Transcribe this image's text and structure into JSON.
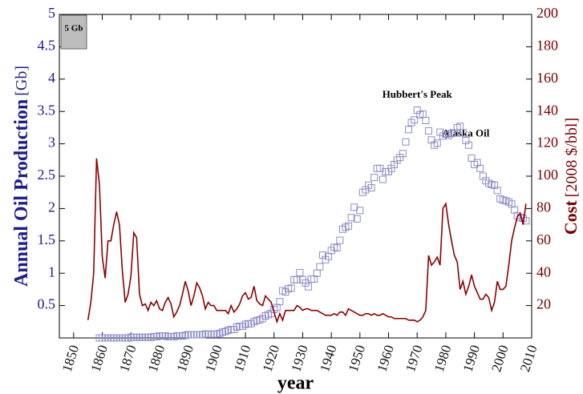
{
  "chart_data": {
    "type": "line",
    "x_label": "year",
    "y_label": "Annual Oil Production",
    "y_label_unit": "[Gb]",
    "y2_label": "Cost",
    "y2_label_unit": "[2008 $/bbl]",
    "box_label": "5 Gb",
    "annotations": [
      {
        "text": "Hubbert's Peak",
        "x": 1970,
        "y": 3.75
      },
      {
        "text": "Alaska Oil",
        "x": 1987,
        "y": 3.15
      }
    ],
    "xlim": [
      1845,
      2010
    ],
    "xticks": [
      1850,
      1860,
      1870,
      1880,
      1890,
      1900,
      1910,
      1920,
      1930,
      1940,
      1950,
      1960,
      1970,
      1980,
      1990,
      2000,
      2010
    ],
    "ylim": [
      0,
      5
    ],
    "yticks": [
      0.5,
      1,
      1.5,
      2,
      2.5,
      3,
      3.5,
      4,
      4.5,
      5
    ],
    "y2lim": [
      0,
      200
    ],
    "y2ticks": [
      20,
      40,
      60,
      80,
      100,
      120,
      140,
      160,
      180,
      200
    ],
    "series": [
      {
        "name": "Annual Oil Production",
        "kind": "scatter",
        "color": "#8c8cc8",
        "x": [
          1859,
          1860,
          1861,
          1862,
          1863,
          1864,
          1865,
          1866,
          1867,
          1868,
          1869,
          1870,
          1871,
          1872,
          1873,
          1874,
          1875,
          1876,
          1877,
          1878,
          1879,
          1880,
          1881,
          1882,
          1883,
          1884,
          1885,
          1886,
          1887,
          1888,
          1889,
          1890,
          1891,
          1892,
          1893,
          1894,
          1895,
          1896,
          1897,
          1898,
          1899,
          1900,
          1901,
          1902,
          1903,
          1904,
          1905,
          1906,
          1907,
          1908,
          1909,
          1910,
          1911,
          1912,
          1913,
          1914,
          1915,
          1916,
          1917,
          1918,
          1919,
          1920,
          1921,
          1922,
          1923,
          1924,
          1925,
          1926,
          1927,
          1928,
          1929,
          1930,
          1931,
          1932,
          1933,
          1934,
          1935,
          1936,
          1937,
          1938,
          1939,
          1940,
          1941,
          1942,
          1943,
          1944,
          1945,
          1946,
          1947,
          1948,
          1949,
          1950,
          1951,
          1952,
          1953,
          1954,
          1955,
          1956,
          1957,
          1958,
          1959,
          1960,
          1961,
          1962,
          1963,
          1964,
          1965,
          1966,
          1967,
          1968,
          1969,
          1970,
          1971,
          1972,
          1973,
          1974,
          1975,
          1976,
          1977,
          1978,
          1979,
          1980,
          1981,
          1982,
          1983,
          1984,
          1985,
          1986,
          1987,
          1988,
          1989,
          1990,
          1991,
          1992,
          1993,
          1994,
          1995,
          1996,
          1997,
          1998,
          1999,
          2000,
          2001,
          2002,
          2003,
          2004,
          2005,
          2006,
          2007,
          2008
        ],
        "values": [
          0,
          0,
          0,
          0,
          0,
          0,
          0,
          0,
          0,
          0,
          0,
          0.01,
          0.01,
          0.01,
          0.01,
          0.01,
          0.01,
          0.01,
          0.01,
          0.02,
          0.02,
          0.03,
          0.03,
          0.03,
          0.02,
          0.02,
          0.02,
          0.03,
          0.03,
          0.03,
          0.04,
          0.05,
          0.05,
          0.05,
          0.05,
          0.05,
          0.05,
          0.06,
          0.06,
          0.06,
          0.06,
          0.06,
          0.07,
          0.09,
          0.1,
          0.12,
          0.13,
          0.13,
          0.17,
          0.18,
          0.18,
          0.21,
          0.22,
          0.22,
          0.25,
          0.27,
          0.28,
          0.3,
          0.34,
          0.36,
          0.38,
          0.44,
          0.47,
          0.56,
          0.73,
          0.71,
          0.76,
          0.77,
          0.9,
          0.9,
          1.01,
          0.9,
          0.85,
          0.79,
          0.91,
          0.91,
          1,
          1.1,
          1.28,
          1.21,
          1.26,
          1.35,
          1.4,
          1.39,
          1.51,
          1.68,
          1.71,
          1.73,
          1.86,
          2.02,
          1.84,
          1.97,
          2.25,
          2.29,
          2.36,
          2.32,
          2.48,
          2.62,
          2.62,
          2.45,
          2.57,
          2.57,
          2.62,
          2.68,
          2.75,
          2.79,
          2.85,
          3.03,
          3.22,
          3.33,
          3.37,
          3.52,
          3.45,
          3.46,
          3.36,
          3.2,
          3.06,
          2.98,
          3.01,
          3.18,
          3.12,
          3.15,
          3.13,
          3.16,
          3.17,
          3.25,
          3.27,
          3.17,
          3.05,
          2.98,
          2.78,
          2.68,
          2.71,
          2.62,
          2.5,
          2.43,
          2.39,
          2.37,
          2.36,
          2.28,
          2.15,
          2.13,
          2.12,
          2.1,
          2.07,
          1.98,
          1.89,
          1.86,
          1.85,
          1.81
        ]
      },
      {
        "name": "Cost",
        "kind": "line",
        "axis": "y2",
        "color": "#8b0000",
        "x": [
          1855,
          1856,
          1857,
          1858,
          1859,
          1860,
          1861,
          1862,
          1863,
          1864,
          1865,
          1866,
          1867,
          1868,
          1869,
          1870,
          1871,
          1872,
          1873,
          1874,
          1875,
          1876,
          1877,
          1878,
          1879,
          1880,
          1881,
          1882,
          1883,
          1884,
          1885,
          1886,
          1887,
          1888,
          1889,
          1890,
          1891,
          1892,
          1893,
          1894,
          1895,
          1896,
          1897,
          1898,
          1899,
          1900,
          1901,
          1902,
          1903,
          1904,
          1905,
          1906,
          1907,
          1908,
          1909,
          1910,
          1911,
          1912,
          1913,
          1914,
          1915,
          1916,
          1917,
          1918,
          1919,
          1920,
          1921,
          1922,
          1923,
          1924,
          1925,
          1926,
          1927,
          1928,
          1929,
          1930,
          1931,
          1932,
          1933,
          1934,
          1935,
          1936,
          1937,
          1938,
          1939,
          1940,
          1941,
          1942,
          1943,
          1944,
          1945,
          1946,
          1947,
          1948,
          1949,
          1950,
          1951,
          1952,
          1953,
          1954,
          1955,
          1956,
          1957,
          1958,
          1959,
          1960,
          1961,
          1962,
          1963,
          1964,
          1965,
          1966,
          1967,
          1968,
          1969,
          1970,
          1971,
          1972,
          1973,
          1974,
          1975,
          1976,
          1977,
          1978,
          1979,
          1980,
          1981,
          1982,
          1983,
          1984,
          1985,
          1986,
          1987,
          1988,
          1989,
          1990,
          1991,
          1992,
          1993,
          1994,
          1995,
          1996,
          1997,
          1998,
          1999,
          2000,
          2001,
          2002,
          2003,
          2004,
          2005,
          2006,
          2007,
          2008
        ],
        "values": [
          11,
          22,
          40,
          111,
          95,
          50,
          37,
          60,
          60,
          70,
          78,
          70,
          42,
          22,
          27,
          38,
          65,
          62,
          27,
          20,
          21,
          17,
          22,
          20,
          23,
          18,
          17,
          22,
          25,
          21,
          13,
          16,
          20,
          27,
          35,
          29,
          20,
          26,
          34,
          31,
          26,
          18,
          22,
          20,
          20,
          17,
          17,
          17,
          17,
          15,
          20,
          16,
          18,
          21,
          26,
          28,
          24,
          25,
          32,
          23,
          21,
          20,
          26,
          24,
          22,
          16,
          10,
          15,
          11,
          17,
          17,
          17,
          17,
          20,
          19,
          17,
          18,
          18,
          17,
          17,
          17,
          16,
          15,
          14,
          14,
          14,
          15,
          14,
          16,
          16,
          14,
          18,
          17,
          16,
          15,
          14,
          14,
          15,
          15,
          14,
          15,
          14,
          14,
          15,
          14,
          13,
          13,
          12,
          12,
          12,
          12,
          12,
          11,
          11,
          11,
          10,
          11,
          13,
          17,
          51,
          45,
          47,
          50,
          45,
          80,
          83,
          70,
          60,
          51,
          47,
          30,
          35,
          27,
          32,
          39,
          32,
          28,
          24,
          24,
          27,
          25,
          17,
          22,
          35,
          30,
          30,
          32,
          45,
          60,
          68,
          75,
          77,
          70,
          83
        ]
      }
    ]
  }
}
